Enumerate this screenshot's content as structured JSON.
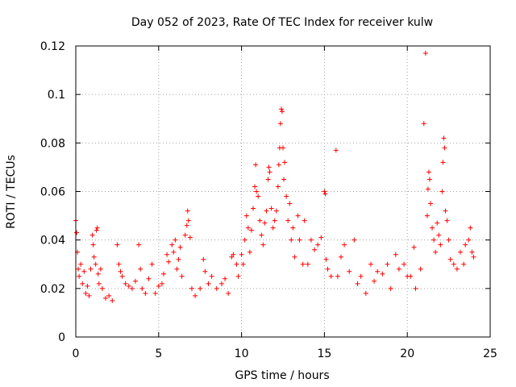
{
  "chart_data": {
    "type": "scatter",
    "title": "Day 052 of 2023, Rate Of TEC Index for receiver kulw",
    "xlabel": "GPS time / hours",
    "ylabel": "ROTI / TECUs",
    "xlim": [
      0,
      25
    ],
    "ylim": [
      0,
      0.12
    ],
    "x_ticks": [
      0,
      5,
      10,
      15,
      20,
      25
    ],
    "x_tick_labels": [
      "0",
      "5",
      "10",
      "15",
      "20",
      "25"
    ],
    "y_ticks": [
      0,
      0.02,
      0.04,
      0.06,
      0.08,
      0.1,
      0.12
    ],
    "y_tick_labels": [
      "0",
      "0.02",
      "0.04",
      "0.06",
      "0.08",
      "0.1",
      "0.12"
    ],
    "grid": true,
    "marker": "+",
    "color": "#ff0000",
    "series": [
      {
        "points": [
          [
            0.0,
            0.048
          ],
          [
            0.05,
            0.043
          ],
          [
            0.1,
            0.035
          ],
          [
            0.15,
            0.028
          ],
          [
            0.2,
            0.025
          ],
          [
            0.3,
            0.03
          ],
          [
            0.4,
            0.022
          ],
          [
            0.5,
            0.027
          ],
          [
            0.6,
            0.018
          ],
          [
            0.7,
            0.021
          ],
          [
            0.8,
            0.017
          ],
          [
            0.9,
            0.028
          ],
          [
            1.0,
            0.042
          ],
          [
            1.05,
            0.038
          ],
          [
            1.1,
            0.033
          ],
          [
            1.2,
            0.03
          ],
          [
            1.25,
            0.044
          ],
          [
            1.3,
            0.045
          ],
          [
            1.35,
            0.026
          ],
          [
            1.4,
            0.022
          ],
          [
            1.5,
            0.028
          ],
          [
            1.6,
            0.02
          ],
          [
            1.8,
            0.016
          ],
          [
            2.0,
            0.017
          ],
          [
            2.2,
            0.015
          ],
          [
            2.5,
            0.038
          ],
          [
            2.6,
            0.03
          ],
          [
            2.7,
            0.027
          ],
          [
            2.8,
            0.025
          ],
          [
            3.0,
            0.022
          ],
          [
            3.2,
            0.021
          ],
          [
            3.4,
            0.02
          ],
          [
            3.6,
            0.023
          ],
          [
            3.8,
            0.038
          ],
          [
            3.9,
            0.028
          ],
          [
            4.0,
            0.02
          ],
          [
            4.2,
            0.018
          ],
          [
            4.4,
            0.024
          ],
          [
            4.6,
            0.03
          ],
          [
            4.8,
            0.018
          ],
          [
            5.0,
            0.021
          ],
          [
            5.2,
            0.022
          ],
          [
            5.3,
            0.026
          ],
          [
            5.5,
            0.034
          ],
          [
            5.6,
            0.031
          ],
          [
            5.8,
            0.038
          ],
          [
            5.9,
            0.035
          ],
          [
            6.0,
            0.04
          ],
          [
            6.1,
            0.028
          ],
          [
            6.2,
            0.032
          ],
          [
            6.3,
            0.037
          ],
          [
            6.4,
            0.025
          ],
          [
            6.6,
            0.042
          ],
          [
            6.7,
            0.046
          ],
          [
            6.75,
            0.052
          ],
          [
            6.8,
            0.048
          ],
          [
            6.9,
            0.041
          ],
          [
            7.0,
            0.02
          ],
          [
            7.2,
            0.017
          ],
          [
            7.5,
            0.02
          ],
          [
            7.7,
            0.032
          ],
          [
            7.8,
            0.027
          ],
          [
            8.0,
            0.022
          ],
          [
            8.2,
            0.025
          ],
          [
            8.5,
            0.02
          ],
          [
            8.8,
            0.022
          ],
          [
            9.0,
            0.024
          ],
          [
            9.2,
            0.018
          ],
          [
            9.4,
            0.033
          ],
          [
            9.5,
            0.034
          ],
          [
            9.7,
            0.03
          ],
          [
            9.8,
            0.025
          ],
          [
            10.0,
            0.034
          ],
          [
            10.1,
            0.03
          ],
          [
            10.2,
            0.04
          ],
          [
            10.3,
            0.05
          ],
          [
            10.4,
            0.045
          ],
          [
            10.5,
            0.035
          ],
          [
            10.6,
            0.044
          ],
          [
            10.7,
            0.053
          ],
          [
            10.8,
            0.062
          ],
          [
            10.85,
            0.071
          ],
          [
            10.9,
            0.06
          ],
          [
            11.0,
            0.058
          ],
          [
            11.1,
            0.048
          ],
          [
            11.2,
            0.042
          ],
          [
            11.3,
            0.038
          ],
          [
            11.4,
            0.047
          ],
          [
            11.5,
            0.052
          ],
          [
            11.6,
            0.065
          ],
          [
            11.65,
            0.07
          ],
          [
            11.7,
            0.068
          ],
          [
            11.8,
            0.053
          ],
          [
            11.9,
            0.045
          ],
          [
            12.0,
            0.048
          ],
          [
            12.1,
            0.052
          ],
          [
            12.2,
            0.062
          ],
          [
            12.25,
            0.071
          ],
          [
            12.3,
            0.078
          ],
          [
            12.35,
            0.088
          ],
          [
            12.4,
            0.094
          ],
          [
            12.45,
            0.093
          ],
          [
            12.5,
            0.078
          ],
          [
            12.55,
            0.065
          ],
          [
            12.6,
            0.072
          ],
          [
            12.7,
            0.058
          ],
          [
            12.8,
            0.048
          ],
          [
            12.9,
            0.055
          ],
          [
            13.0,
            0.04
          ],
          [
            13.1,
            0.045
          ],
          [
            13.2,
            0.033
          ],
          [
            13.4,
            0.05
          ],
          [
            13.5,
            0.04
          ],
          [
            13.7,
            0.03
          ],
          [
            13.8,
            0.048
          ],
          [
            14.0,
            0.03
          ],
          [
            14.2,
            0.04
          ],
          [
            14.4,
            0.036
          ],
          [
            14.6,
            0.038
          ],
          [
            14.8,
            0.041
          ],
          [
            15.0,
            0.06
          ],
          [
            15.05,
            0.059
          ],
          [
            15.1,
            0.032
          ],
          [
            15.2,
            0.028
          ],
          [
            15.4,
            0.025
          ],
          [
            15.7,
            0.077
          ],
          [
            15.8,
            0.025
          ],
          [
            16.0,
            0.033
          ],
          [
            16.2,
            0.038
          ],
          [
            16.5,
            0.027
          ],
          [
            16.8,
            0.04
          ],
          [
            17.0,
            0.022
          ],
          [
            17.2,
            0.025
          ],
          [
            17.5,
            0.018
          ],
          [
            17.8,
            0.03
          ],
          [
            18.0,
            0.023
          ],
          [
            18.2,
            0.027
          ],
          [
            18.5,
            0.026
          ],
          [
            18.8,
            0.03
          ],
          [
            19.0,
            0.02
          ],
          [
            19.3,
            0.034
          ],
          [
            19.5,
            0.028
          ],
          [
            19.8,
            0.03
          ],
          [
            20.0,
            0.025
          ],
          [
            20.2,
            0.025
          ],
          [
            20.4,
            0.037
          ],
          [
            20.5,
            0.02
          ],
          [
            20.8,
            0.028
          ],
          [
            21.0,
            0.088
          ],
          [
            21.1,
            0.117
          ],
          [
            21.2,
            0.05
          ],
          [
            21.25,
            0.061
          ],
          [
            21.3,
            0.068
          ],
          [
            21.35,
            0.065
          ],
          [
            21.4,
            0.055
          ],
          [
            21.5,
            0.045
          ],
          [
            21.6,
            0.04
          ],
          [
            21.7,
            0.035
          ],
          [
            21.8,
            0.047
          ],
          [
            21.9,
            0.042
          ],
          [
            22.0,
            0.038
          ],
          [
            22.1,
            0.06
          ],
          [
            22.15,
            0.072
          ],
          [
            22.2,
            0.082
          ],
          [
            22.25,
            0.078
          ],
          [
            22.3,
            0.052
          ],
          [
            22.4,
            0.048
          ],
          [
            22.5,
            0.04
          ],
          [
            22.6,
            0.032
          ],
          [
            22.8,
            0.03
          ],
          [
            23.0,
            0.028
          ],
          [
            23.2,
            0.035
          ],
          [
            23.4,
            0.03
          ],
          [
            23.5,
            0.038
          ],
          [
            23.7,
            0.04
          ],
          [
            23.8,
            0.045
          ],
          [
            23.9,
            0.035
          ],
          [
            24.0,
            0.033
          ]
        ]
      }
    ]
  }
}
